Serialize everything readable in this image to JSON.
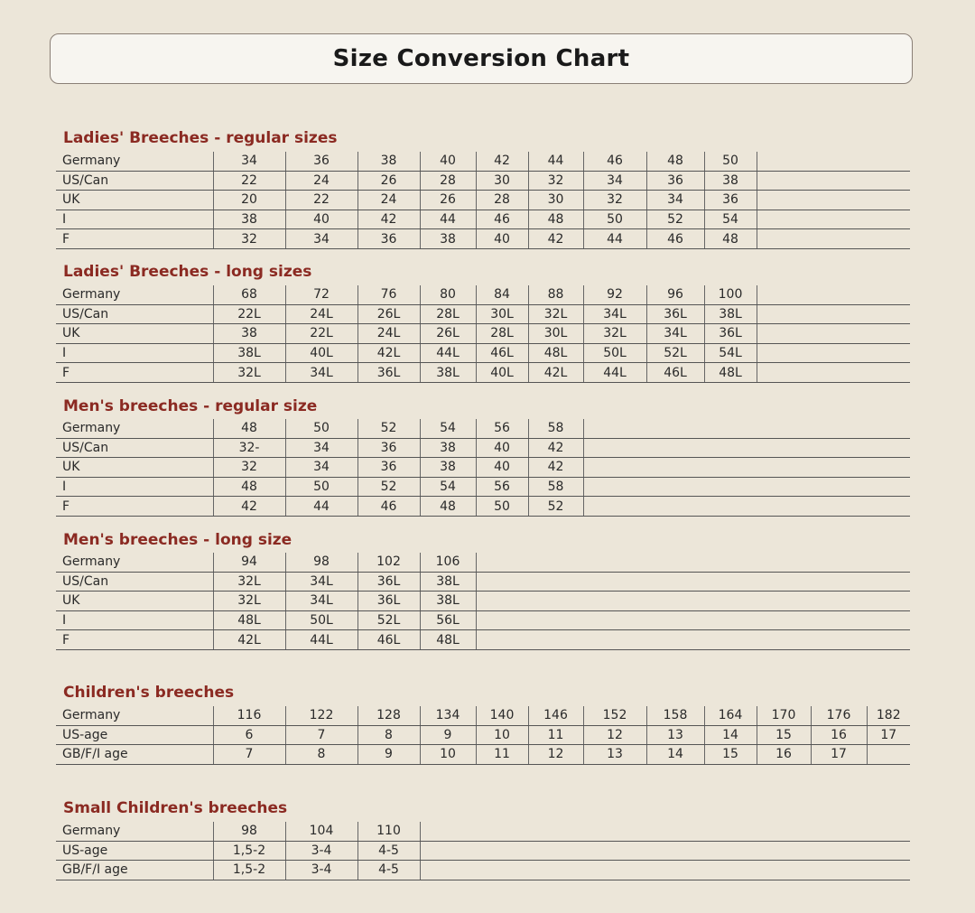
{
  "title": "Size Conversion Chart",
  "sections": [
    {
      "title": "Ladies' Breeches - regular sizes",
      "rows": [
        {
          "label": "Germany",
          "values": [
            "34",
            "36",
            "38",
            "40",
            "42",
            "44",
            "46",
            "48",
            "50"
          ]
        },
        {
          "label": "US/Can",
          "values": [
            "22",
            "24",
            "26",
            "28",
            "30",
            "32",
            "34",
            "36",
            "38"
          ]
        },
        {
          "label": "UK",
          "values": [
            "20",
            "22",
            "24",
            "26",
            "28",
            "30",
            "32",
            "34",
            "36"
          ]
        },
        {
          "label": "I",
          "values": [
            "38",
            "40",
            "42",
            "44",
            "46",
            "48",
            "50",
            "52",
            "54"
          ]
        },
        {
          "label": "F",
          "values": [
            "32",
            "34",
            "36",
            "38",
            "40",
            "42",
            "44",
            "46",
            "48"
          ]
        }
      ]
    },
    {
      "title": "Ladies' Breeches - long sizes",
      "rows": [
        {
          "label": "Germany",
          "values": [
            "68",
            "72",
            "76",
            "80",
            "84",
            "88",
            "92",
            "96",
            "100"
          ]
        },
        {
          "label": "US/Can",
          "values": [
            "22L",
            "24L",
            "26L",
            "28L",
            "30L",
            "32L",
            "34L",
            "36L",
            "38L"
          ]
        },
        {
          "label": "UK",
          "values": [
            "38",
            "22L",
            "24L",
            "26L",
            "28L",
            "30L",
            "32L",
            "34L",
            "36L"
          ]
        },
        {
          "label": "I",
          "values": [
            "38L",
            "40L",
            "42L",
            "44L",
            "46L",
            "48L",
            "50L",
            "52L",
            "54L"
          ]
        },
        {
          "label": "F",
          "values": [
            "32L",
            "34L",
            "36L",
            "38L",
            "40L",
            "42L",
            "44L",
            "46L",
            "48L"
          ]
        }
      ]
    },
    {
      "title": "Men's breeches - regular size",
      "rows": [
        {
          "label": "Germany",
          "values": [
            "48",
            "50",
            "52",
            "54",
            "56",
            "58"
          ]
        },
        {
          "label": "US/Can",
          "values": [
            "32-",
            "34",
            "36",
            "38",
            "40",
            "42"
          ]
        },
        {
          "label": "UK",
          "values": [
            "32",
            "34",
            "36",
            "38",
            "40",
            "42"
          ]
        },
        {
          "label": "I",
          "values": [
            "48",
            "50",
            "52",
            "54",
            "56",
            "58"
          ]
        },
        {
          "label": "F",
          "values": [
            "42",
            "44",
            "46",
            "48",
            "50",
            "52"
          ]
        }
      ]
    },
    {
      "title": "Men's breeches - long size",
      "rows": [
        {
          "label": "Germany",
          "values": [
            "94",
            "98",
            "102",
            "106"
          ]
        },
        {
          "label": "US/Can",
          "values": [
            "32L",
            "34L",
            "36L",
            "38L"
          ]
        },
        {
          "label": "UK",
          "values": [
            "32L",
            "34L",
            "36L",
            "38L"
          ]
        },
        {
          "label": "I",
          "values": [
            "48L",
            "50L",
            "52L",
            "56L"
          ]
        },
        {
          "label": "F",
          "values": [
            "42L",
            "44L",
            "46L",
            "48L"
          ]
        }
      ]
    },
    {
      "title": "Children's breeches",
      "rows": [
        {
          "label": "Germany",
          "values": [
            "116",
            "122",
            "128",
            "134",
            "140",
            "146",
            "152",
            "158",
            "164",
            "170",
            "176",
            "182"
          ]
        },
        {
          "label": "US-age",
          "values": [
            "6",
            "7",
            "8",
            "9",
            "10",
            "11",
            "12",
            "13",
            "14",
            "15",
            "16",
            "17"
          ]
        },
        {
          "label": "GB/F/I age",
          "values": [
            "7",
            "8",
            "9",
            "10",
            "11",
            "12",
            "13",
            "14",
            "15",
            "16",
            "17",
            ""
          ]
        }
      ]
    },
    {
      "title": "Small Children's breeches",
      "rows": [
        {
          "label": "Germany",
          "values": [
            "98",
            "104",
            "110"
          ]
        },
        {
          "label": "US-age",
          "values": [
            "1,5-2",
            "3-4",
            "4-5"
          ]
        },
        {
          "label": "GB/F/I age",
          "values": [
            "1,5-2",
            "3-4",
            "4-5"
          ]
        }
      ]
    }
  ]
}
